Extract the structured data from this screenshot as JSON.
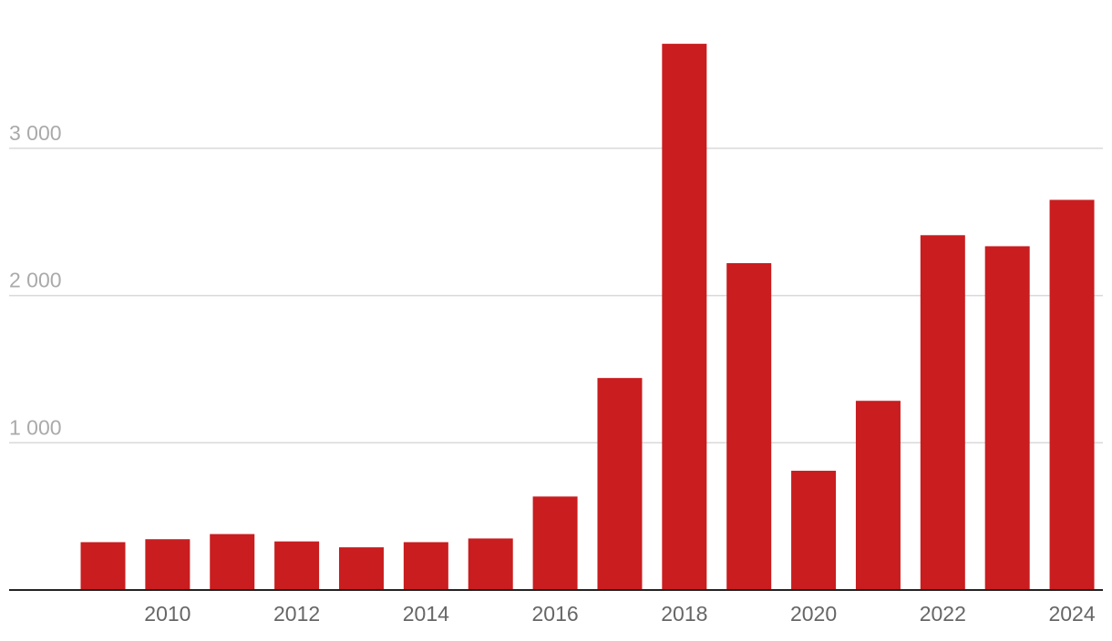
{
  "chart_data": {
    "type": "bar",
    "title": "",
    "xlabel": "",
    "ylabel": "",
    "categories": [
      "2009",
      "2010",
      "2011",
      "2012",
      "2013",
      "2014",
      "2015",
      "2016",
      "2017",
      "2018",
      "2019",
      "2020",
      "2021",
      "2022",
      "2023",
      "2024"
    ],
    "values": [
      325,
      345,
      380,
      330,
      290,
      325,
      350,
      635,
      1440,
      3710,
      2220,
      810,
      1285,
      2410,
      2335,
      2650
    ],
    "ylim": [
      0,
      3800
    ],
    "y_ticks": [
      {
        "value": 1000,
        "label": "1 000"
      },
      {
        "value": 2000,
        "label": "2 000"
      },
      {
        "value": 3000,
        "label": "3 000"
      }
    ],
    "x_tick_labels": [
      "2010",
      "2012",
      "2014",
      "2016",
      "2018",
      "2020",
      "2022",
      "2024"
    ],
    "bar_color": "#c91d1f",
    "grid": true,
    "legend": "none"
  }
}
